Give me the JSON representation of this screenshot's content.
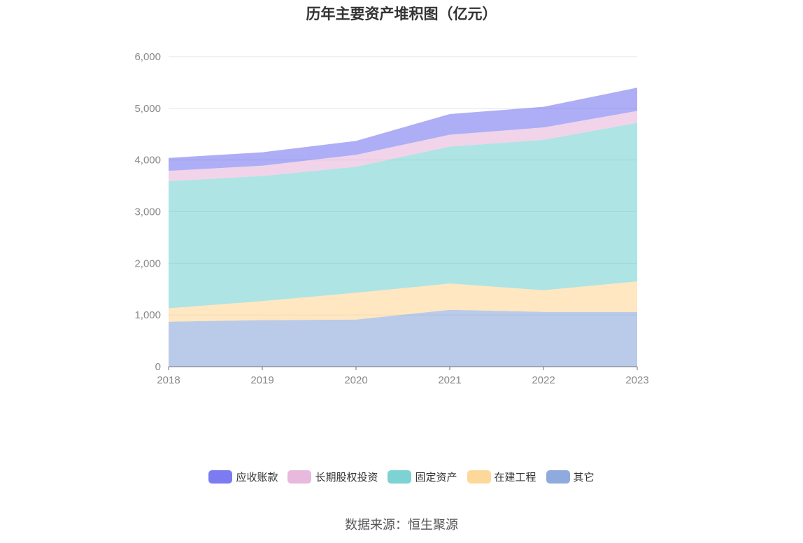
{
  "chart_data": {
    "type": "area",
    "stacked": true,
    "title": "历年主要资产堆积图（亿元）",
    "categories": [
      "2018",
      "2019",
      "2020",
      "2021",
      "2022",
      "2023"
    ],
    "ylim": [
      0,
      6000
    ],
    "yticks": [
      0,
      1000,
      2000,
      3000,
      4000,
      5000,
      6000
    ],
    "ytick_labels": [
      "0",
      "1,000",
      "2,000",
      "3,000",
      "4,000",
      "5,000",
      "6,000"
    ],
    "grid": true,
    "legend_position": "bottom",
    "series": [
      {
        "name": "其它",
        "color": "#8faadc",
        "values": [
          870,
          900,
          910,
          1100,
          1060,
          1060
        ]
      },
      {
        "name": "在建工程",
        "color": "#fdd89b",
        "values": [
          260,
          370,
          520,
          510,
          420,
          590
        ]
      },
      {
        "name": "固定资产",
        "color": "#7dd3d3",
        "values": [
          2460,
          2420,
          2440,
          2650,
          2910,
          3070
        ]
      },
      {
        "name": "长期股权投资",
        "color": "#e8b9dc",
        "values": [
          200,
          200,
          230,
          230,
          240,
          230
        ]
      },
      {
        "name": "应收账款",
        "color": "#7c7cf0",
        "values": [
          250,
          260,
          270,
          400,
          400,
          450
        ]
      }
    ],
    "legend_order": [
      "应收账款",
      "长期股权投资",
      "固定资产",
      "在建工程",
      "其它"
    ]
  },
  "source_text": "数据来源：恒生聚源"
}
